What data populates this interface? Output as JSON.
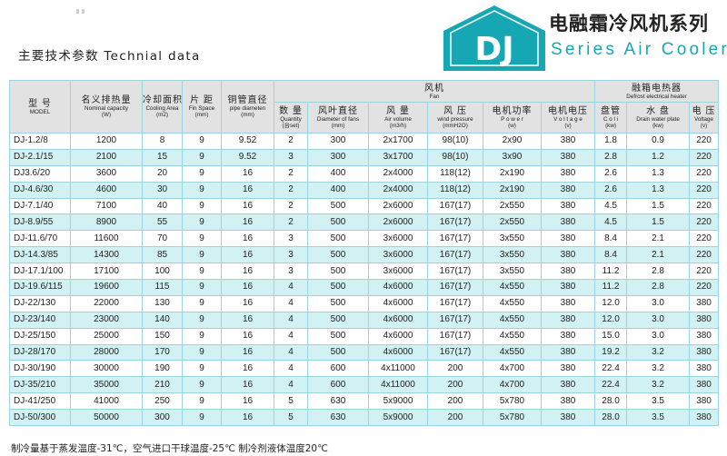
{
  "heading": "主要技术参数 Technial data",
  "brand": {
    "logo_text": "DJ",
    "title_cn": "电融霜冷风机系列",
    "title_en": "Series Air Cooler",
    "accent_color": "#16a7b5"
  },
  "headers": {
    "model": {
      "cn": "型 号",
      "en": "MODEL"
    },
    "capacity": {
      "cn": "名义排热量",
      "en1": "Nominal capacity",
      "en2": "(W)"
    },
    "area": {
      "cn": "冷却面积",
      "en1": "Cooling Area",
      "en2": "(m2)"
    },
    "fin": {
      "cn": "片 距",
      "en1": "Fin Space",
      "en2": "(mm)"
    },
    "pipe": {
      "cn": "铜管直径",
      "en1": "pipe diameten",
      "en2": "(mm)"
    },
    "fan": {
      "cn": "风机",
      "en": "Fan"
    },
    "quantity": {
      "cn": "数 量",
      "en1": "Quantity",
      "en2": "(台set)"
    },
    "diameter": {
      "cn": "风叶直径",
      "en1": "Diameter of fans",
      "en2": "(mm)"
    },
    "volume": {
      "cn": "风 量",
      "en1": "Air volume",
      "en2": "(m3/h)"
    },
    "pressure": {
      "cn": "风 压",
      "en1": "wind pressure",
      "en2": "(mmH2O)"
    },
    "power": {
      "cn": "电机功率",
      "en1": "P o w e r",
      "en2": "(w)"
    },
    "fan_voltage": {
      "cn": "电机电压",
      "en1": "V o l t a g e",
      "en2": "(v)"
    },
    "heater": {
      "cn": "融箱电热器",
      "en": "Defrost electrical heater"
    },
    "coil": {
      "cn": "盘管",
      "en1": "C o l i",
      "en2": "(kw)"
    },
    "drain": {
      "cn": "水 盘",
      "en1": "Drain water plate",
      "en2": "(kw)"
    },
    "heater_voltage": {
      "cn": "电 压",
      "en1": "Voltage",
      "en2": "(v)"
    }
  },
  "rows": [
    [
      "DJ-1.2/8",
      "1200",
      "8",
      "9",
      "9.52",
      "2",
      "300",
      "2x1700",
      "98(10)",
      "2x90",
      "380",
      "1.8",
      "0.9",
      "220"
    ],
    [
      "DJ-2.1/15",
      "2100",
      "15",
      "9",
      "9.52",
      "3",
      "300",
      "3x1700",
      "98(10)",
      "3x90",
      "380",
      "2.8",
      "1.2",
      "220"
    ],
    [
      "DJ3.6/20",
      "3600",
      "20",
      "9",
      "16",
      "2",
      "400",
      "2x4000",
      "118(12)",
      "2x190",
      "380",
      "2.6",
      "1.3",
      "220"
    ],
    [
      "DJ-4.6/30",
      "4600",
      "30",
      "9",
      "16",
      "2",
      "400",
      "2x4000",
      "118(12)",
      "2x190",
      "380",
      "2.6",
      "1.3",
      "220"
    ],
    [
      "DJ-7.1/40",
      "7100",
      "40",
      "9",
      "16",
      "2",
      "500",
      "2x6000",
      "167(17)",
      "2x550",
      "380",
      "4.5",
      "1.5",
      "220"
    ],
    [
      "DJ-8.9/55",
      "8900",
      "55",
      "9",
      "16",
      "2",
      "500",
      "2x6000",
      "167(17)",
      "2x550",
      "380",
      "4.5",
      "1.5",
      "220"
    ],
    [
      "DJ-11.6/70",
      "11600",
      "70",
      "9",
      "16",
      "3",
      "500",
      "3x6000",
      "167(17)",
      "3x550",
      "380",
      "8.4",
      "2.1",
      "220"
    ],
    [
      "DJ-14.3/85",
      "14300",
      "85",
      "9",
      "16",
      "3",
      "500",
      "3x6000",
      "167(17)",
      "3x550",
      "380",
      "8.4",
      "2.1",
      "220"
    ],
    [
      "DJ-17.1/100",
      "17100",
      "100",
      "9",
      "16",
      "3",
      "500",
      "3x6000",
      "167(17)",
      "3x550",
      "380",
      "11.2",
      "2.8",
      "220"
    ],
    [
      "DJ-19.6/115",
      "19600",
      "115",
      "9",
      "16",
      "4",
      "500",
      "4x6000",
      "167(17)",
      "4x550",
      "380",
      "11.2",
      "2.8",
      "220"
    ],
    [
      "DJ-22/130",
      "22000",
      "130",
      "9",
      "16",
      "4",
      "500",
      "4x6000",
      "167(17)",
      "4x550",
      "380",
      "12.0",
      "3.0",
      "380"
    ],
    [
      "DJ-23/140",
      "23000",
      "140",
      "9",
      "16",
      "4",
      "500",
      "4x6000",
      "167(17)",
      "4x550",
      "380",
      "12.0",
      "3.0",
      "380"
    ],
    [
      "DJ-25/150",
      "25000",
      "150",
      "9",
      "16",
      "4",
      "500",
      "4x6000",
      "167(17)",
      "4x550",
      "380",
      "15.0",
      "3.0",
      "380"
    ],
    [
      "DJ-28/170",
      "28000",
      "170",
      "9",
      "16",
      "4",
      "500",
      "4x6000",
      "167(17)",
      "4x550",
      "380",
      "19.2",
      "3.2",
      "380"
    ],
    [
      "DJ-30/190",
      "30000",
      "190",
      "9",
      "16",
      "4",
      "600",
      "4x11000",
      "200",
      "4x700",
      "380",
      "22.4",
      "3.2",
      "380"
    ],
    [
      "DJ-35/210",
      "35000",
      "210",
      "9",
      "16",
      "4",
      "600",
      "4x11000",
      "200",
      "4x700",
      "380",
      "22.4",
      "3.2",
      "380"
    ],
    [
      "DJ-41/250",
      "41000",
      "250",
      "9",
      "16",
      "5",
      "630",
      "5x9000",
      "200",
      "5x780",
      "380",
      "28.0",
      "3.5",
      "380"
    ],
    [
      "DJ-50/300",
      "50000",
      "300",
      "9",
      "16",
      "5",
      "630",
      "5x9000",
      "200",
      "5x780",
      "380",
      "28.0",
      "3.5",
      "380"
    ]
  ],
  "footnote": "制冷量基于蒸发温度-31℃，空气进口干球温度-25℃ 制冷剂液体温度20℃"
}
